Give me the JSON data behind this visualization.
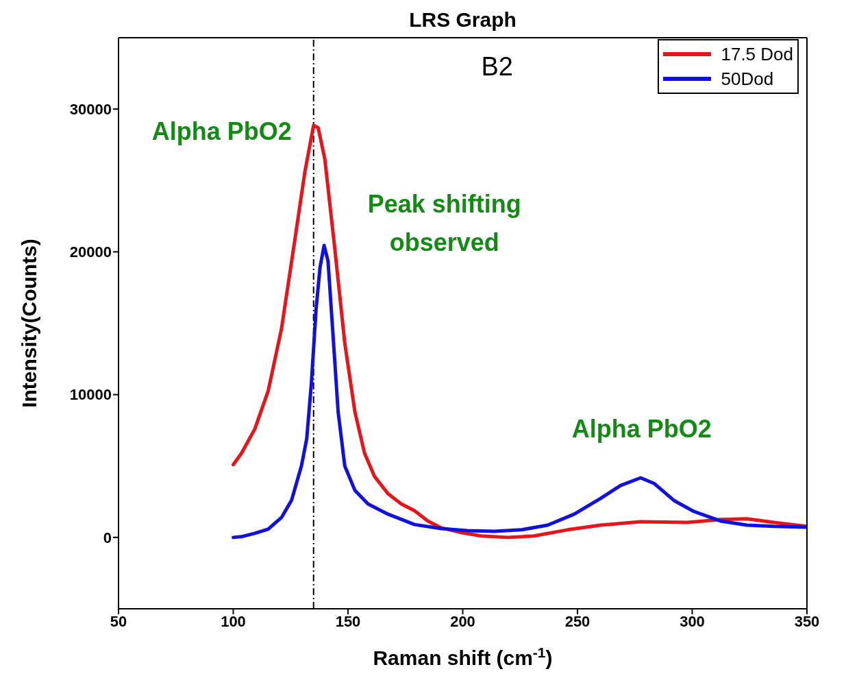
{
  "chart_data": {
    "type": "line",
    "title": "LRS Graph",
    "xlabel": "Raman shift (cm$^{-1}$)",
    "ylabel": "Intensity(Counts)",
    "xlim": [
      50,
      350
    ],
    "xticks": [
      50,
      100,
      150,
      200,
      250,
      300,
      350
    ],
    "ylim": [
      -5000,
      35000
    ],
    "yticks": [
      0,
      10000,
      20000,
      30000
    ],
    "grid": false,
    "legend": "top right",
    "marker": "none",
    "line_style": "solid",
    "ref_lines": [
      {
        "axis": "x",
        "value": 135,
        "color": "#000000",
        "line_style": "dashed"
      }
    ],
    "annotations": [
      "B2",
      "Alpha PbO2",
      "Peak shifting observed",
      "Alpha PbO2"
    ],
    "series": [
      {
        "name": "17.5 Dod",
        "color": "#e8141a",
        "x": [
          100,
          103.6,
          109.4,
          115.2,
          121,
          126.8,
          131.2,
          135,
          137,
          139.9,
          144.2,
          148.6,
          153,
          157.2,
          161.6,
          167.4,
          173.2,
          179,
          184.8,
          190.6,
          199.3,
          208,
          219.6,
          231,
          245.6,
          260,
          277.5,
          297.8,
          312.3,
          323.9,
          335.5,
          350
        ],
        "values": [
          5100,
          5900,
          7600,
          10250,
          14600,
          20800,
          25600,
          28850,
          28700,
          26500,
          20300,
          13600,
          8800,
          5900,
          4260,
          3070,
          2350,
          1870,
          1150,
          670,
          340,
          100,
          0,
          100,
          530,
          860,
          1100,
          1050,
          1250,
          1300,
          1050,
          770
        ]
      },
      {
        "name": "50Dod",
        "color": "#1010e0",
        "x": [
          100,
          103.6,
          109.4,
          115.2,
          121,
          125.4,
          129.7,
          132,
          134,
          136.1,
          137.8,
          139.6,
          141.3,
          143.3,
          145.7,
          148.6,
          153,
          158.7,
          167.4,
          179,
          190.6,
          202,
          213.8,
          225.4,
          237,
          248.6,
          260,
          268.8,
          277.5,
          283.3,
          292,
          300.7,
          312.3,
          323.9,
          335.5,
          350
        ],
        "values": [
          0,
          50,
          290,
          580,
          1390,
          2600,
          5000,
          6900,
          10700,
          16000,
          18900,
          20450,
          19350,
          14600,
          8800,
          5000,
          3300,
          2350,
          1630,
          900,
          620,
          480,
          430,
          530,
          860,
          1630,
          2730,
          3640,
          4170,
          3790,
          2590,
          1820,
          1150,
          860,
          770,
          720
        ]
      }
    ]
  }
}
